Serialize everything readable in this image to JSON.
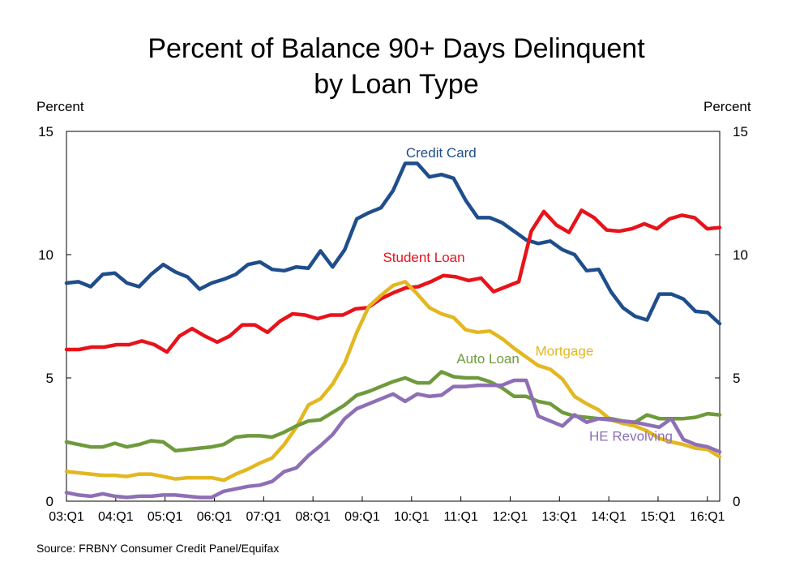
{
  "chart_data": {
    "type": "line",
    "title_lines": [
      "Percent of Balance 90+ Days Delinquent",
      "by Loan Type"
    ],
    "ylabel_left": "Percent",
    "ylabel_right": "Percent",
    "ylim": [
      0,
      15
    ],
    "yticks": [
      0,
      5,
      10,
      15
    ],
    "x_labels": [
      "03:Q1",
      "04:Q1",
      "05:Q1",
      "06:Q1",
      "07:Q1",
      "08:Q1",
      "09:Q1",
      "10:Q1",
      "11:Q1",
      "12:Q1",
      "13:Q1",
      "14:Q1",
      "15:Q1",
      "16:Q1"
    ],
    "x_start": 2003.0,
    "x_end": 2016.25,
    "grid": false,
    "source": "Source: FRBNY Consumer Credit Panel/Equifax",
    "series": [
      {
        "name": "Credit Card",
        "color": "#1F4E8C",
        "values": [
          8.85,
          8.9,
          8.7,
          9.2,
          9.25,
          8.85,
          8.7,
          9.2,
          9.6,
          9.3,
          9.1,
          8.6,
          8.85,
          9.0,
          9.2,
          9.6,
          9.7,
          9.4,
          9.35,
          9.5,
          9.45,
          10.15,
          9.5,
          10.2,
          11.45,
          11.7,
          11.9,
          12.6,
          13.7,
          13.7,
          13.15,
          13.25,
          13.1,
          12.2,
          11.5,
          11.5,
          11.3,
          10.95,
          10.6,
          10.45,
          10.55,
          10.2,
          10.0,
          9.35,
          9.4,
          8.5,
          7.85,
          7.5,
          7.35,
          8.4,
          8.4,
          8.2,
          7.7,
          7.65,
          7.2
        ]
      },
      {
        "name": "Student Loan",
        "color": "#E8131A",
        "values": [
          6.15,
          6.15,
          6.25,
          6.25,
          6.35,
          6.35,
          6.5,
          6.35,
          6.05,
          6.7,
          7.0,
          6.7,
          6.45,
          6.7,
          7.15,
          7.15,
          6.85,
          7.3,
          7.6,
          7.55,
          7.4,
          7.55,
          7.55,
          7.8,
          7.85,
          8.2,
          8.45,
          8.65,
          8.7,
          8.9,
          9.15,
          9.1,
          8.95,
          9.05,
          8.5,
          8.7,
          8.9,
          10.95,
          11.75,
          11.2,
          10.9,
          11.8,
          11.5,
          11.0,
          10.95,
          11.05,
          11.25,
          11.05,
          11.45,
          11.6,
          11.5,
          11.05,
          11.1
        ]
      },
      {
        "name": "Mortgage",
        "color": "#E3B721",
        "values": [
          1.2,
          1.15,
          1.1,
          1.05,
          1.05,
          1.0,
          1.1,
          1.1,
          1.0,
          0.9,
          0.95,
          0.95,
          0.95,
          0.85,
          1.1,
          1.3,
          1.55,
          1.75,
          2.3,
          3.0,
          3.9,
          4.15,
          4.75,
          5.6,
          6.85,
          7.9,
          8.35,
          8.75,
          8.9,
          8.4,
          7.85,
          7.6,
          7.45,
          6.95,
          6.85,
          6.9,
          6.6,
          6.2,
          5.85,
          5.5,
          5.35,
          4.95,
          4.25,
          3.95,
          3.7,
          3.3,
          3.15,
          3.05,
          2.85,
          2.55,
          2.4,
          2.3,
          2.15,
          2.1,
          1.8
        ]
      },
      {
        "name": "Auto Loan",
        "color": "#6F9A3C",
        "values": [
          2.4,
          2.3,
          2.2,
          2.2,
          2.35,
          2.2,
          2.3,
          2.45,
          2.4,
          2.05,
          2.1,
          2.15,
          2.2,
          2.3,
          2.6,
          2.65,
          2.65,
          2.6,
          2.8,
          3.05,
          3.25,
          3.3,
          3.6,
          3.9,
          4.3,
          4.45,
          4.65,
          4.85,
          5.0,
          4.8,
          4.8,
          5.25,
          5.05,
          5.0,
          5.0,
          4.85,
          4.6,
          4.25,
          4.25,
          4.05,
          3.95,
          3.6,
          3.45,
          3.4,
          3.35,
          3.35,
          3.25,
          3.2,
          3.5,
          3.35,
          3.35,
          3.35,
          3.4,
          3.55,
          3.5
        ]
      },
      {
        "name": "HE Revolving",
        "color": "#8E6FB5",
        "values": [
          0.35,
          0.25,
          0.2,
          0.3,
          0.2,
          0.15,
          0.2,
          0.2,
          0.25,
          0.25,
          0.2,
          0.15,
          0.15,
          0.4,
          0.5,
          0.6,
          0.65,
          0.8,
          1.2,
          1.35,
          1.85,
          2.25,
          2.7,
          3.35,
          3.75,
          3.95,
          4.15,
          4.35,
          4.05,
          4.35,
          4.25,
          4.3,
          4.65,
          4.65,
          4.7,
          4.7,
          4.7,
          4.9,
          4.9,
          3.45,
          3.25,
          3.05,
          3.5,
          3.2,
          3.35,
          3.3,
          3.25,
          3.2,
          3.1,
          3.0,
          3.35,
          2.5,
          2.3,
          2.2,
          2.0
        ]
      }
    ],
    "annotations": [
      {
        "text": "Credit Card",
        "series": "Credit Card",
        "x": 2010.6,
        "y": 13.95
      },
      {
        "text": "Student Loan",
        "series": "Student Loan",
        "x": 2010.25,
        "y": 9.7
      },
      {
        "text": "Mortgage",
        "series": "Mortgage",
        "x": 2013.1,
        "y": 5.9
      },
      {
        "text": "Auto Loan",
        "series": "Auto Loan",
        "x": 2011.55,
        "y": 5.6
      },
      {
        "text": "HE Revolving",
        "series": "HE Revolving",
        "x": 2014.45,
        "y": 2.45
      }
    ]
  }
}
